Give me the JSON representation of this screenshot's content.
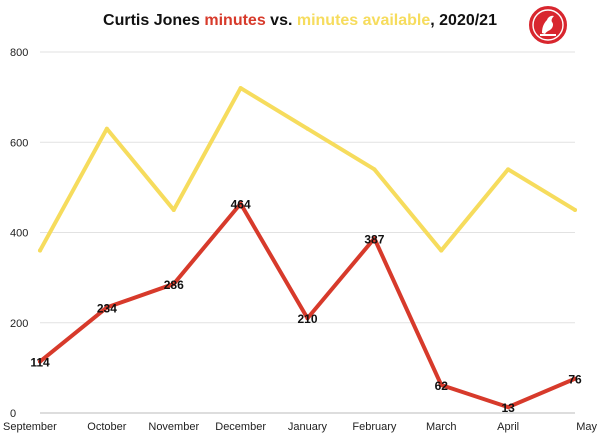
{
  "chart_data": {
    "type": "line",
    "title": {
      "part1": "Curtis Jones ",
      "part2": "minutes",
      "part3": " vs. ",
      "part4": "minutes available",
      "part5": ", 2020/21"
    },
    "categories": [
      "September",
      "October",
      "November",
      "December",
      "January",
      "February",
      "March",
      "April",
      "May"
    ],
    "y_ticks": [
      "0",
      "200",
      "400",
      "600",
      "800"
    ],
    "ylim": [
      0,
      800
    ],
    "grid": true,
    "series": [
      {
        "key": "available",
        "color": "#f6dc5d",
        "values": [
          360,
          630,
          450,
          720,
          630,
          540,
          360,
          540,
          450
        ],
        "labels": false
      },
      {
        "key": "minutes",
        "color": "#d73a2b",
        "values": [
          114,
          234,
          286,
          464,
          210,
          387,
          62,
          13,
          76
        ],
        "labels": true
      }
    ],
    "title_colors": {
      "name": "#111111",
      "minutes": "#d73a2b",
      "available": "#f6dc5d"
    }
  }
}
